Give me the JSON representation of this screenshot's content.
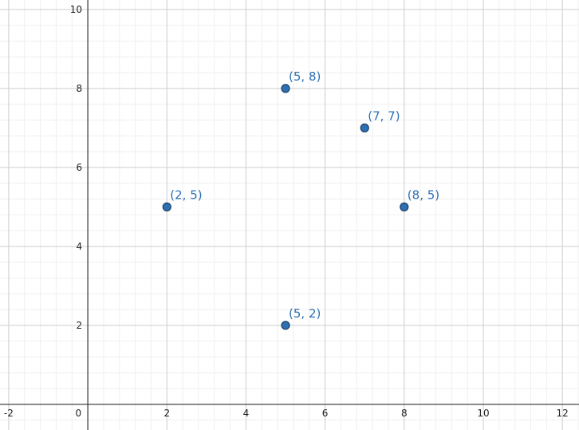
{
  "chart_data": {
    "type": "scatter",
    "x": [
      2,
      5,
      7,
      8,
      5
    ],
    "values": [
      5,
      8,
      7,
      5,
      2
    ],
    "value_labels": [
      "(2, 5)",
      "(5, 8)",
      "(7, 7)",
      "(8, 5)",
      "(5, 2)"
    ],
    "color": "#2d70b3",
    "xlim": [
      -2.22,
      12.42
    ],
    "ylim": [
      -0.65,
      10.24
    ],
    "xticks": [
      -2,
      0,
      2,
      4,
      6,
      8,
      10,
      12
    ],
    "yticks": [
      2,
      4,
      6,
      8,
      10
    ],
    "grid": true,
    "minor_grid_divisions": 5
  }
}
